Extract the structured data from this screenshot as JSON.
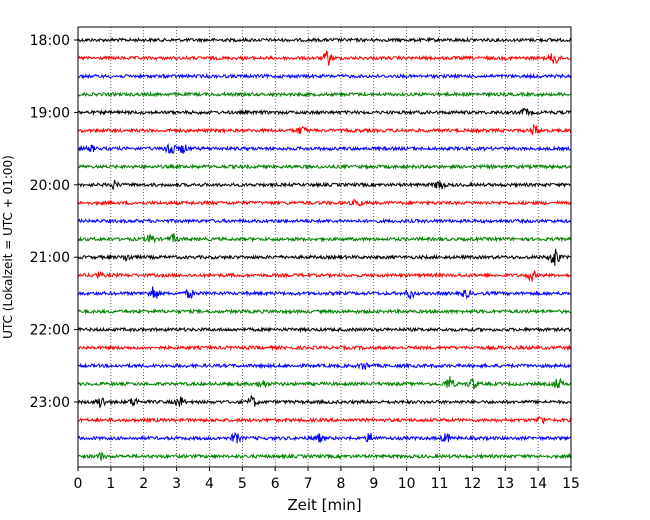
{
  "chart_data": {
    "type": "line",
    "title": "",
    "xlabel": "Zeit  [min]",
    "ylabel": "UTC (Lokalzeit = UTC + 01:00)",
    "xlim": [
      0,
      15
    ],
    "x_ticks": [
      0,
      1,
      2,
      3,
      4,
      5,
      6,
      7,
      8,
      9,
      10,
      11,
      12,
      13,
      14,
      15
    ],
    "x_tick_labels": [
      "0",
      "1",
      "2",
      "3",
      "4",
      "5",
      "6",
      "7",
      "8",
      "9",
      "10",
      "11",
      "12",
      "13",
      "14",
      "15"
    ],
    "y_tick_labels": [
      "18:00",
      "19:00",
      "20:00",
      "21:00",
      "22:00",
      "23:00"
    ],
    "y_tick_rows": [
      0,
      4,
      8,
      12,
      16,
      20
    ],
    "grid": "vertical dotted at each minute",
    "color_cycle": [
      "#000000",
      "#ff0000",
      "#0000ff",
      "#008000"
    ],
    "rows": [
      {
        "start": "18:00",
        "color": "#000000",
        "events": []
      },
      {
        "start": "18:15",
        "color": "#ff0000",
        "events": [
          [
            7.6,
            1.0
          ],
          [
            14.5,
            1.0
          ]
        ]
      },
      {
        "start": "18:30",
        "color": "#0000ff",
        "events": []
      },
      {
        "start": "18:45",
        "color": "#008000",
        "events": []
      },
      {
        "start": "19:00",
        "color": "#000000",
        "events": [
          [
            13.6,
            0.5
          ]
        ]
      },
      {
        "start": "19:15",
        "color": "#ff0000",
        "events": [
          [
            6.8,
            0.5
          ],
          [
            13.9,
            0.7
          ]
        ]
      },
      {
        "start": "19:30",
        "color": "#0000ff",
        "events": [
          [
            0.4,
            0.4
          ],
          [
            2.8,
            1.3
          ],
          [
            3.2,
            0.6
          ]
        ]
      },
      {
        "start": "19:45",
        "color": "#008000",
        "events": []
      },
      {
        "start": "20:00",
        "color": "#000000",
        "events": [
          [
            1.1,
            0.5
          ],
          [
            11.0,
            0.8
          ]
        ]
      },
      {
        "start": "20:15",
        "color": "#ff0000",
        "events": [
          [
            8.5,
            0.5
          ]
        ]
      },
      {
        "start": "20:30",
        "color": "#0000ff",
        "events": []
      },
      {
        "start": "20:45",
        "color": "#008000",
        "events": [
          [
            2.2,
            0.6
          ],
          [
            2.9,
            0.6
          ]
        ]
      },
      {
        "start": "21:00",
        "color": "#000000",
        "events": [
          [
            1.5,
            0.5
          ],
          [
            14.5,
            1.5
          ]
        ]
      },
      {
        "start": "21:15",
        "color": "#ff0000",
        "events": [
          [
            0.6,
            0.4
          ],
          [
            13.8,
            0.7
          ]
        ]
      },
      {
        "start": "21:30",
        "color": "#0000ff",
        "events": [
          [
            2.3,
            1.1
          ],
          [
            3.4,
            0.6
          ],
          [
            10.1,
            0.7
          ],
          [
            11.8,
            0.5
          ]
        ]
      },
      {
        "start": "21:45",
        "color": "#008000",
        "events": []
      },
      {
        "start": "22:00",
        "color": "#000000",
        "events": []
      },
      {
        "start": "22:15",
        "color": "#ff0000",
        "events": []
      },
      {
        "start": "22:30",
        "color": "#0000ff",
        "events": [
          [
            8.7,
            0.5
          ]
        ]
      },
      {
        "start": "22:45",
        "color": "#008000",
        "events": [
          [
            5.6,
            0.6
          ],
          [
            11.3,
            1.0
          ],
          [
            12.0,
            0.7
          ],
          [
            14.6,
            0.7
          ]
        ]
      },
      {
        "start": "23:00",
        "color": "#000000",
        "events": [
          [
            0.7,
            0.8
          ],
          [
            1.7,
            0.6
          ],
          [
            3.1,
            0.7
          ],
          [
            5.3,
            0.8
          ]
        ]
      },
      {
        "start": "23:15",
        "color": "#ff0000",
        "events": [
          [
            14.1,
            0.5
          ]
        ]
      },
      {
        "start": "23:30",
        "color": "#0000ff",
        "events": [
          [
            4.8,
            0.7
          ],
          [
            7.3,
            0.6
          ],
          [
            8.9,
            0.7
          ],
          [
            11.2,
            0.6
          ]
        ]
      },
      {
        "start": "23:45",
        "color": "#008000",
        "events": [
          [
            0.7,
            0.4
          ]
        ]
      }
    ]
  }
}
